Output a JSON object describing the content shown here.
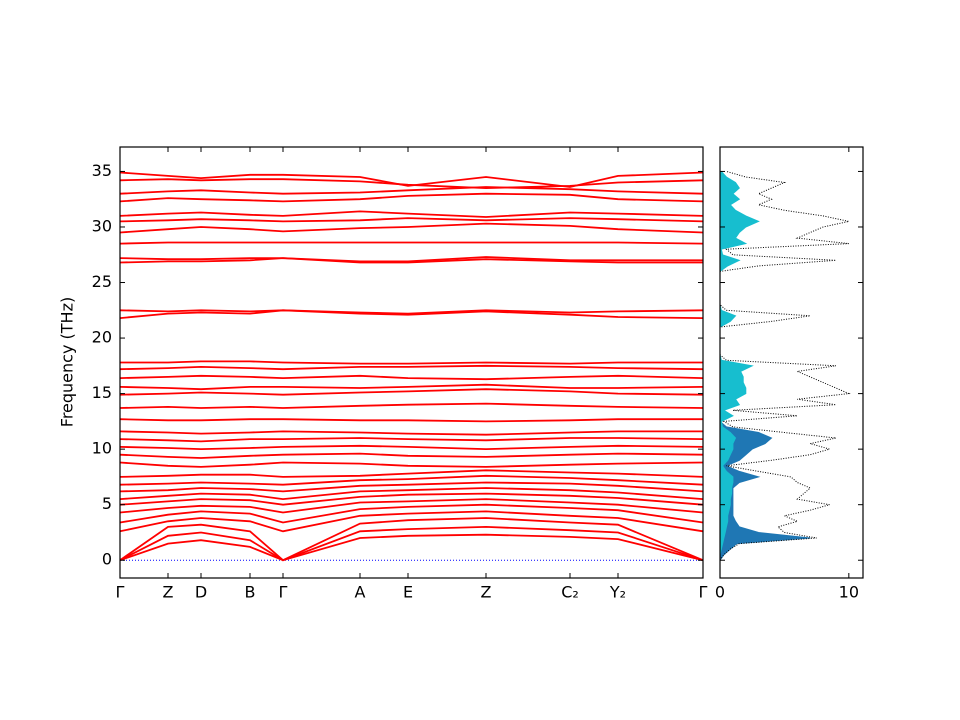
{
  "chart_data": [
    {
      "type": "bands",
      "ylabel": "Frequency (THz)",
      "x": [
        0,
        48,
        81,
        130,
        163,
        240,
        288,
        366,
        450,
        498,
        583
      ],
      "xlim": [
        0,
        583
      ],
      "xticks": [
        {
          "value": 0,
          "label": "Γ"
        },
        {
          "value": 48,
          "label": "Z"
        },
        {
          "value": 81,
          "label": "D"
        },
        {
          "value": 130,
          "label": "B"
        },
        {
          "value": 163,
          "label": "Γ"
        },
        {
          "value": 240,
          "label": "A"
        },
        {
          "value": 288,
          "label": "E"
        },
        {
          "value": 366,
          "label": "Z"
        },
        {
          "value": 450,
          "label": "C₂"
        },
        {
          "value": 498,
          "label": "Y₂"
        },
        {
          "value": 583,
          "label": "Γ"
        }
      ],
      "ylim": [
        -1.6,
        37.2
      ],
      "yticks": [
        0,
        5,
        10,
        15,
        20,
        25,
        30,
        35
      ],
      "color": "#ff0000",
      "zero_line": 0,
      "zero_line_color": "#0000ff",
      "series": [
        {
          "values": [
            0,
            1.5,
            1.8,
            1.2,
            0,
            2,
            2.2,
            2.3,
            2.1,
            1.9,
            0
          ]
        },
        {
          "values": [
            0,
            2.2,
            2.5,
            1.8,
            0,
            2.6,
            2.8,
            3,
            2.7,
            2.5,
            0
          ]
        },
        {
          "values": [
            0,
            3,
            3.2,
            2.6,
            0,
            3.3,
            3.6,
            3.8,
            3.4,
            3.2,
            0
          ]
        },
        {
          "values": [
            2.6,
            3.5,
            3.8,
            3.5,
            2.6,
            4,
            4.2,
            4.4,
            4.0,
            3.8,
            2.6
          ]
        },
        {
          "values": [
            3.4,
            4.1,
            4.4,
            4.2,
            3.4,
            4.6,
            4.8,
            5,
            4.7,
            4.5,
            3.4
          ]
        },
        {
          "values": [
            4.3,
            4.7,
            4.9,
            4.8,
            4.3,
            5.2,
            5.3,
            5.5,
            5.2,
            5,
            4.3
          ]
        },
        {
          "values": [
            5.0,
            5.3,
            5.5,
            5.4,
            5.0,
            5.7,
            5.9,
            6,
            5.8,
            5.6,
            5.0
          ]
        },
        {
          "values": [
            5.5,
            5.8,
            6,
            5.9,
            5.5,
            6.2,
            6.3,
            6.5,
            6.3,
            6.1,
            5.5
          ]
        },
        {
          "values": [
            6.2,
            6.3,
            6.5,
            6.4,
            6.2,
            6.7,
            6.8,
            7,
            6.9,
            6.7,
            6.2
          ]
        },
        {
          "values": [
            6.8,
            6.9,
            7.0,
            6.9,
            6.8,
            7.2,
            7.3,
            7.6,
            7.4,
            7.2,
            6.8
          ]
        },
        {
          "values": [
            7.5,
            7.6,
            7.7,
            7.7,
            7.5,
            7.6,
            7.8,
            8.1,
            7.9,
            7.8,
            7.5
          ]
        },
        {
          "values": [
            8.8,
            8.5,
            8.4,
            8.6,
            8.8,
            8.7,
            8.5,
            8.4,
            8.6,
            8.7,
            8.8
          ]
        },
        {
          "values": [
            9.5,
            9.3,
            9.2,
            9.4,
            9.5,
            9.6,
            9.4,
            9.3,
            9.5,
            9.6,
            9.5
          ]
        },
        {
          "values": [
            10.2,
            10.1,
            10,
            10.1,
            10.2,
            10.3,
            10.2,
            10,
            10.2,
            10.3,
            10.2
          ]
        },
        {
          "values": [
            10.9,
            10.8,
            10.7,
            10.9,
            10.9,
            11,
            10.9,
            10.8,
            11,
            11,
            10.9
          ]
        },
        {
          "values": [
            11.6,
            11.5,
            11.4,
            11.5,
            11.6,
            11.5,
            11.4,
            11.3,
            11.5,
            11.6,
            11.6
          ]
        },
        {
          "values": [
            12.7,
            12.6,
            12.6,
            12.7,
            12.7,
            12.6,
            12.6,
            12.5,
            12.6,
            12.7,
            12.7
          ]
        },
        {
          "values": [
            13.7,
            13.8,
            13.7,
            13.8,
            13.7,
            13.9,
            14,
            14.1,
            13.9,
            13.8,
            13.7
          ]
        },
        {
          "values": [
            14.9,
            15,
            15.1,
            15,
            14.9,
            15.1,
            15.2,
            15.4,
            15.2,
            15,
            14.9
          ]
        },
        {
          "values": [
            15.6,
            15.5,
            15.4,
            15.6,
            15.6,
            15.5,
            15.6,
            15.8,
            15.5,
            15.5,
            15.6
          ]
        },
        {
          "values": [
            16.4,
            16.5,
            16.6,
            16.5,
            16.4,
            16.6,
            16.4,
            16.3,
            16.5,
            16.6,
            16.4
          ]
        },
        {
          "values": [
            17.2,
            17.3,
            17.4,
            17.3,
            17.2,
            17.4,
            17.4,
            17.5,
            17.4,
            17.3,
            17.2
          ]
        },
        {
          "values": [
            17.8,
            17.8,
            17.9,
            17.9,
            17.8,
            17.7,
            17.7,
            17.8,
            17.7,
            17.8,
            17.8
          ]
        },
        {
          "values": [
            21.8,
            22.2,
            22.3,
            22.2,
            22.5,
            22.2,
            22.1,
            22.4,
            22.1,
            21.9,
            21.8
          ]
        },
        {
          "values": [
            22.5,
            22.4,
            22.5,
            22.4,
            22.5,
            22.3,
            22.2,
            22.5,
            22.3,
            22.4,
            22.5
          ]
        },
        {
          "values": [
            26.8,
            26.9,
            26.9,
            27,
            27.2,
            26.8,
            26.8,
            27.1,
            26.9,
            26.8,
            26.8
          ]
        },
        {
          "values": [
            27.2,
            27.1,
            27.1,
            27.2,
            27.2,
            26.9,
            26.9,
            27.3,
            27.0,
            27.0,
            27.0
          ]
        },
        {
          "values": [
            28.5,
            28.6,
            28.6,
            28.6,
            28.6,
            28.6,
            28.6,
            28.6,
            28.6,
            28.6,
            28.5
          ]
        },
        {
          "values": [
            29.5,
            29.8,
            30,
            29.8,
            29.6,
            29.9,
            30,
            30.3,
            30.1,
            29.8,
            29.5
          ]
        },
        {
          "values": [
            30.5,
            30.6,
            30.7,
            30.6,
            30.5,
            30.6,
            30.8,
            30.6,
            30.8,
            30.7,
            30.5
          ]
        },
        {
          "values": [
            31.0,
            31.2,
            31.3,
            31.1,
            31,
            31.4,
            31.2,
            30.9,
            31.3,
            31.2,
            31.0
          ]
        },
        {
          "values": [
            32.3,
            32.6,
            32.5,
            32.4,
            32.3,
            32.5,
            32.8,
            33,
            32.9,
            32.5,
            32.3
          ]
        },
        {
          "values": [
            33.0,
            33.2,
            33.3,
            33.1,
            33.0,
            33.1,
            33.3,
            33.6,
            33.4,
            33.2,
            33.0
          ]
        },
        {
          "values": [
            34.2,
            34.3,
            34.2,
            34.3,
            34.3,
            34.1,
            33.8,
            33.5,
            33.7,
            34.0,
            34.2
          ]
        },
        {
          "values": [
            34.9,
            34.6,
            34.4,
            34.7,
            34.7,
            34.5,
            33.7,
            34.5,
            33.6,
            34.6,
            34.9
          ]
        }
      ]
    },
    {
      "type": "dos",
      "frequency": [
        0,
        0.5,
        1,
        1.5,
        2,
        2.5,
        3,
        3.5,
        4,
        4.5,
        5,
        5.5,
        6,
        6.5,
        7,
        7.5,
        8,
        8.5,
        9,
        9.5,
        10,
        10.5,
        11,
        11.5,
        12,
        12.5,
        13,
        13.5,
        14,
        14.5,
        15,
        15.5,
        16,
        16.5,
        17,
        17.5,
        18,
        18.5,
        19,
        19.5,
        20,
        20.5,
        21,
        21.5,
        22,
        22.5,
        23,
        23.5,
        24,
        24.5,
        25,
        25.5,
        26,
        26.5,
        27,
        27.5,
        28,
        28.5,
        29,
        29.5,
        30,
        30.5,
        31,
        31.5,
        32,
        32.5,
        33,
        33.5,
        34,
        34.5,
        35
      ],
      "xlim": [
        0,
        11.1
      ],
      "xticks": [
        0,
        10
      ],
      "series": [
        {
          "color": "#1f77b4",
          "style": "filled",
          "values": [
            0,
            0.3,
            0.8,
            1.3,
            7,
            3,
            1.5,
            1.2,
            1,
            1,
            1,
            1,
            1,
            1,
            1.5,
            3,
            1.5,
            0.5,
            1.5,
            2,
            2.5,
            3.5,
            4,
            3,
            0.5,
            0,
            0,
            0,
            0,
            0,
            0,
            0,
            0,
            0,
            0,
            0,
            0,
            0,
            0,
            0,
            0,
            0,
            0,
            0,
            0,
            0,
            0,
            0,
            0,
            0,
            0,
            0,
            0,
            0,
            0,
            0,
            0,
            0,
            0,
            0,
            0,
            0,
            0,
            0,
            0,
            0,
            0,
            0,
            0,
            0,
            0
          ]
        },
        {
          "color": "#17becf",
          "style": "filled",
          "values": [
            0,
            0,
            0.1,
            0.2,
            0.3,
            0.4,
            0.5,
            0.6,
            0.6,
            0.7,
            0.8,
            0.8,
            0.9,
            0.9,
            1,
            1,
            0.5,
            0.2,
            0.6,
            0.8,
            1,
            1,
            1.2,
            0.8,
            0.2,
            0.1,
            1,
            0.3,
            1.5,
            1.2,
            2,
            2,
            1.8,
            1.8,
            1.6,
            2.5,
            0.1,
            0,
            0,
            0,
            0,
            0,
            0,
            0.8,
            1.2,
            0.1,
            0,
            0,
            0,
            0,
            0,
            0,
            0,
            0.6,
            1.5,
            0.2,
            0.1,
            2,
            1.2,
            1.5,
            2,
            3,
            2,
            1.2,
            0.8,
            1.5,
            1,
            1.5,
            1.2,
            0.5,
            0.1
          ]
        },
        {
          "color": "#000000",
          "style": "dotted",
          "values": [
            0,
            0.3,
            0.8,
            1.5,
            7.5,
            5,
            4.5,
            6,
            5,
            7,
            8.5,
            6,
            6.5,
            7,
            6,
            5.5,
            3,
            0.5,
            4,
            7,
            8.5,
            7,
            9,
            5,
            1,
            0.3,
            6,
            1,
            9,
            6,
            10,
            9,
            8,
            7,
            6,
            9,
            0.5,
            0,
            0,
            0,
            0,
            0,
            0,
            4,
            7,
            0.5,
            0,
            0,
            0,
            0,
            0,
            0,
            0,
            3,
            9,
            1,
            0.5,
            10,
            6,
            7,
            8,
            10,
            8,
            5,
            3,
            4,
            3,
            4,
            5,
            2,
            0.5
          ]
        }
      ]
    }
  ]
}
